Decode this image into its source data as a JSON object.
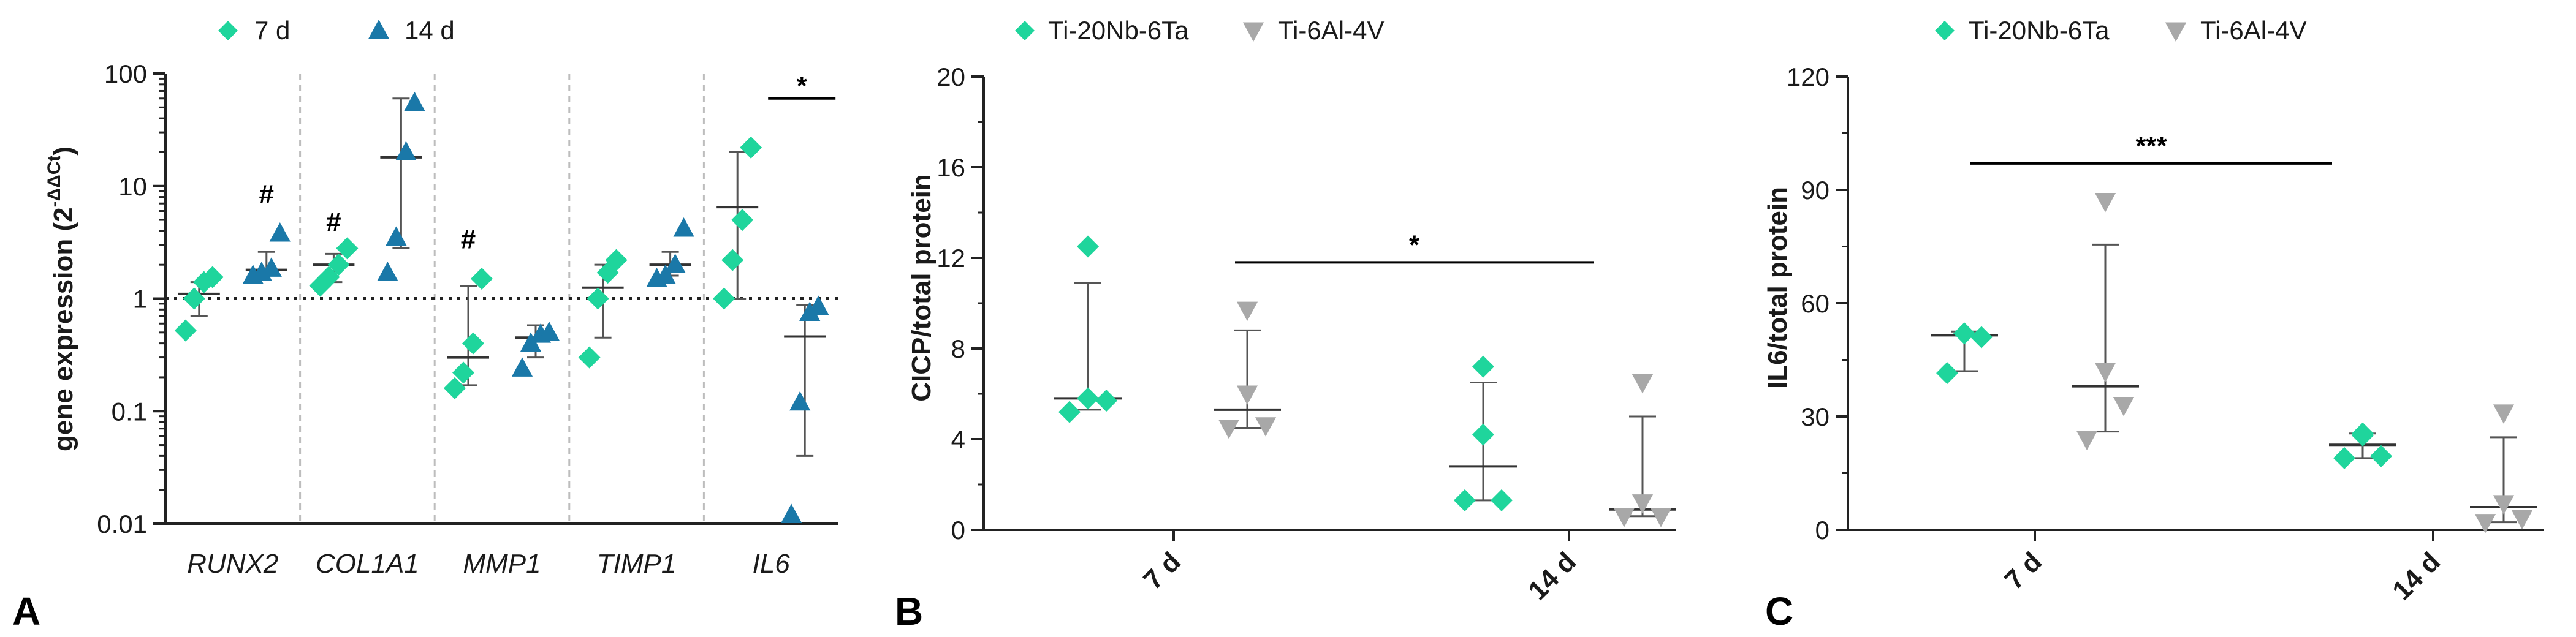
{
  "colors": {
    "green": "#1fd59c",
    "blue": "#1a78a8",
    "grey": "#a8a8a8",
    "axis": "#222222",
    "err": "#555555"
  },
  "chart_data": [
    {
      "panel": "A",
      "type": "scatter",
      "scale": "log",
      "ylabel": "gene expression (2",
      "ylabel_sup": "-ΔΔCt",
      "ylabel_close": ")",
      "ylim": [
        0.01,
        100
      ],
      "yticks": [
        "100",
        "10",
        "1",
        "0.1",
        "0.01"
      ],
      "ytick_values": [
        100,
        10,
        1,
        0.1,
        0.01
      ],
      "reference_line": 1,
      "categories": [
        "RUNX2",
        "COL1A1",
        "MMP1",
        "TIMP1",
        "IL6"
      ],
      "legend": [
        {
          "name": "7 d",
          "marker": "diamond",
          "color": "#1fd59c"
        },
        {
          "name": "14 d",
          "marker": "triangle-up",
          "color": "#1a78a8"
        }
      ],
      "series": [
        {
          "name": "7 d",
          "groups": [
            {
              "category": "RUNX2",
              "points": [
                0.52,
                1.0,
                1.4,
                1.55
              ],
              "center": 1.1,
              "low": 0.7,
              "high": 1.4
            },
            {
              "category": "COL1A1",
              "points": [
                1.3,
                1.55,
                2.0,
                2.8
              ],
              "center": 2.0,
              "low": 1.4,
              "high": 2.5
            },
            {
              "category": "MMP1",
              "points": [
                0.16,
                0.22,
                0.4,
                1.5
              ],
              "center": 0.3,
              "low": 0.17,
              "high": 1.3
            },
            {
              "category": "TIMP1",
              "points": [
                0.3,
                1.0,
                1.7,
                2.2
              ],
              "center": 1.25,
              "low": 0.45,
              "high": 2.0
            },
            {
              "category": "IL6",
              "points": [
                1.0,
                2.2,
                5.0,
                22.0
              ],
              "center": 6.5,
              "low": 1.0,
              "high": 20.0
            }
          ],
          "annotations": [
            {
              "category": "COL1A1",
              "text": "#",
              "value": 4.0
            },
            {
              "category": "MMP1",
              "text": "#",
              "value": 2.8
            }
          ]
        },
        {
          "name": "14 d",
          "groups": [
            {
              "category": "RUNX2",
              "points": [
                1.6,
                1.7,
                1.85,
                3.8
              ],
              "center": 1.8,
              "low": 1.6,
              "high": 2.6
            },
            {
              "category": "COL1A1",
              "points": [
                1.7,
                3.5,
                20.0,
                55.0
              ],
              "center": 18.0,
              "low": 2.8,
              "high": 60.0
            },
            {
              "category": "MMP1",
              "points": [
                0.24,
                0.4,
                0.48,
                0.5
              ],
              "center": 0.45,
              "low": 0.3,
              "high": 0.58
            },
            {
              "category": "TIMP1",
              "points": [
                1.5,
                1.6,
                2.0,
                4.2
              ],
              "center": 2.0,
              "low": 1.6,
              "high": 2.6
            },
            {
              "category": "IL6",
              "points": [
                0.012,
                0.12,
                0.75,
                0.85
              ],
              "center": 0.46,
              "low": 0.04,
              "high": 0.88
            }
          ],
          "annotations": [
            {
              "category": "RUNX2",
              "text": "#",
              "value": 7.0
            }
          ]
        }
      ],
      "significance": [
        {
          "text": "*",
          "category": "IL6",
          "value": 60
        }
      ]
    },
    {
      "panel": "B",
      "type": "scatter",
      "ylabel": "CICP/total protein",
      "ylim": [
        0,
        20
      ],
      "yticks": [
        "0",
        "4",
        "8",
        "12",
        "16",
        "20"
      ],
      "ytick_values": [
        0,
        4,
        8,
        12,
        16,
        20
      ],
      "categories": [
        "7 d",
        "14 d"
      ],
      "legend": [
        {
          "name": "Ti-20Nb-6Ta",
          "marker": "diamond",
          "color": "#1fd59c"
        },
        {
          "name": "Ti-6Al-4V",
          "marker": "triangle-down",
          "color": "#a8a8a8"
        }
      ],
      "series": [
        {
          "name": "Ti-20Nb-6Ta",
          "groups": [
            {
              "category": "7 d",
              "points": [
                12.5,
                5.8,
                5.7,
                5.2
              ],
              "center": 5.8,
              "low": 5.3,
              "high": 10.9
            },
            {
              "category": "14 d",
              "points": [
                7.2,
                4.2,
                1.3,
                1.3
              ],
              "center": 2.8,
              "low": 1.3,
              "high": 6.5
            }
          ]
        },
        {
          "name": "Ti-6Al-4V",
          "groups": [
            {
              "category": "7 d",
              "points": [
                9.7,
                6.0,
                4.6,
                4.5
              ],
              "center": 5.3,
              "low": 4.5,
              "high": 8.8
            },
            {
              "category": "14 d",
              "points": [
                6.5,
                1.2,
                0.6,
                0.6
              ],
              "center": 0.9,
              "low": 0.6,
              "high": 5.0
            }
          ]
        }
      ],
      "significance": [
        {
          "text": "*",
          "value": 11.8,
          "from": "7 d / Ti-6Al-4V",
          "to": "14 d / Ti-6Al-4V"
        }
      ]
    },
    {
      "panel": "C",
      "type": "scatter",
      "ylabel": "IL6/total protein",
      "ylim": [
        0,
        120
      ],
      "yticks": [
        "0",
        "30",
        "60",
        "90",
        "120"
      ],
      "ytick_values": [
        0,
        30,
        60,
        90,
        120
      ],
      "categories": [
        "7 d",
        "14 d"
      ],
      "legend": [
        {
          "name": "Ti-20Nb-6Ta",
          "marker": "diamond",
          "color": "#1fd59c"
        },
        {
          "name": "Ti-6Al-4V",
          "marker": "triangle-down",
          "color": "#a8a8a8"
        }
      ],
      "series": [
        {
          "name": "Ti-20Nb-6Ta",
          "groups": [
            {
              "category": "7 d",
              "points": [
                52,
                51,
                41.5
              ],
              "center": 51.5,
              "low": 42,
              "high": 52.5
            },
            {
              "category": "14 d",
              "points": [
                25.5,
                25,
                19.5,
                19
              ],
              "center": 22.5,
              "low": 19,
              "high": 25.5
            }
          ]
        },
        {
          "name": "Ti-6Al-4V",
          "groups": [
            {
              "category": "7 d",
              "points": [
                87,
                42,
                33,
                24
              ],
              "center": 38,
              "low": 26,
              "high": 75.5
            },
            {
              "category": "14 d",
              "points": [
                31,
                7,
                3,
                2
              ],
              "center": 6,
              "low": 2,
              "high": 24.5
            }
          ]
        }
      ],
      "significance": [
        {
          "text": "***",
          "value": 97,
          "from": "7 d / Ti-20Nb-6Ta",
          "to": "14 d / Ti-20Nb-6Ta"
        }
      ]
    }
  ]
}
